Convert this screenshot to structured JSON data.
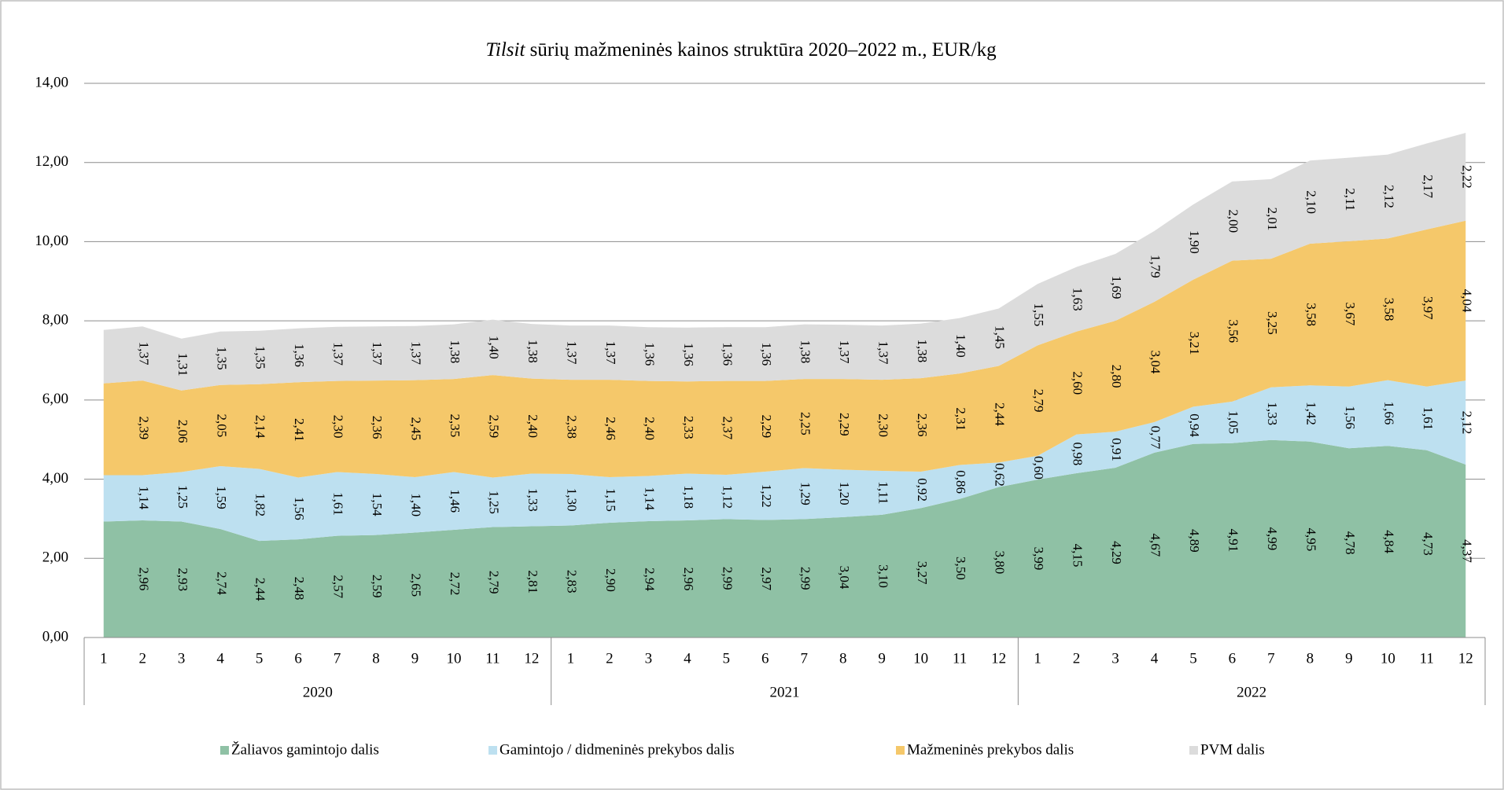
{
  "chart_data": {
    "type": "stacked_area",
    "title_italic": "Tilsit",
    "title": " sūrių mažmeninės kainos struktūra 2020–2022 m., EUR/kg",
    "categories": [
      "1",
      "2",
      "3",
      "4",
      "5",
      "6",
      "7",
      "8",
      "9",
      "10",
      "11",
      "12",
      "1",
      "2",
      "3",
      "4",
      "5",
      "6",
      "7",
      "8",
      "9",
      "10",
      "11",
      "12",
      "1",
      "2",
      "3",
      "4",
      "5",
      "6",
      "7",
      "8",
      "9",
      "10",
      "11",
      "12"
    ],
    "category_groups": [
      "2020",
      "2021",
      "2022"
    ],
    "ylim": [
      0,
      14
    ],
    "yticks": [
      {
        "value": 0,
        "label": "0,00"
      },
      {
        "value": 2,
        "label": "2,00"
      },
      {
        "value": 4,
        "label": "4,00"
      },
      {
        "value": 6,
        "label": "6,00"
      },
      {
        "value": 8,
        "label": "8,00"
      },
      {
        "value": 10,
        "label": "10,00"
      },
      {
        "value": 12,
        "label": "12,00"
      },
      {
        "value": 14,
        "label": "14,00"
      }
    ],
    "grid": true,
    "legend": "bottom",
    "series": [
      {
        "name": "Žaliavos gamintojo dalis",
        "color": "#8fc1a5",
        "values": [
          2.93,
          2.96,
          2.93,
          2.74,
          2.44,
          2.48,
          2.57,
          2.59,
          2.65,
          2.72,
          2.79,
          2.81,
          2.83,
          2.9,
          2.94,
          2.96,
          2.99,
          2.97,
          2.99,
          3.04,
          3.1,
          3.27,
          3.5,
          3.8,
          3.99,
          4.15,
          4.29,
          4.67,
          4.89,
          4.91,
          4.99,
          4.95,
          4.78,
          4.84,
          4.73,
          4.37
        ],
        "value_labels": [
          null,
          "2,96",
          "2,93",
          "2,74",
          "2,44",
          "2,48",
          "2,57",
          "2,59",
          "2,65",
          "2,72",
          "2,79",
          "2,81",
          "2,83",
          "2,90",
          "2,94",
          "2,96",
          "2,99",
          "2,97",
          "2,99",
          "3,04",
          "3,10",
          "3,27",
          "3,50",
          "3,80",
          "3,99",
          "4,15",
          "4,29",
          "4,67",
          "4,89",
          "4,91",
          "4,99",
          "4,95",
          "4,78",
          "4,84",
          "4,73",
          "4,37"
        ]
      },
      {
        "name": "Gamintojo / didmeninės prekybos dalis",
        "color": "#bde0f0",
        "values": [
          1.17,
          1.14,
          1.25,
          1.59,
          1.82,
          1.56,
          1.61,
          1.54,
          1.4,
          1.46,
          1.25,
          1.33,
          1.3,
          1.15,
          1.14,
          1.18,
          1.12,
          1.22,
          1.29,
          1.2,
          1.11,
          0.92,
          0.86,
          0.62,
          0.6,
          0.98,
          0.91,
          0.77,
          0.94,
          1.05,
          1.33,
          1.42,
          1.56,
          1.66,
          1.61,
          2.12
        ],
        "value_labels": [
          null,
          "1,14",
          "1,25",
          "1,59",
          "1,82",
          "1,56",
          "1,61",
          "1,54",
          "1,40",
          "1,46",
          "1,25",
          "1,33",
          "1,30",
          "1,15",
          "1,14",
          "1,18",
          "1,12",
          "1,22",
          "1,29",
          "1,20",
          "1,11",
          "0,92",
          "0,86",
          "0,62",
          "0,60",
          "0,98",
          "0,91",
          "0,77",
          "0,94",
          "1,05",
          "1,33",
          "1,42",
          "1,56",
          "1,66",
          "1,61",
          "2,12"
        ]
      },
      {
        "name": "Mažmeninės prekybos dalis",
        "color": "#f5c86a",
        "values": [
          2.32,
          2.39,
          2.06,
          2.05,
          2.14,
          2.41,
          2.3,
          2.36,
          2.45,
          2.35,
          2.59,
          2.4,
          2.38,
          2.46,
          2.4,
          2.33,
          2.37,
          2.29,
          2.25,
          2.29,
          2.3,
          2.36,
          2.31,
          2.44,
          2.79,
          2.6,
          2.8,
          3.04,
          3.21,
          3.56,
          3.25,
          3.58,
          3.67,
          3.58,
          3.97,
          4.04
        ],
        "value_labels": [
          null,
          "2,39",
          "2,06",
          "2,05",
          "2,14",
          "2,41",
          "2,30",
          "2,36",
          "2,45",
          "2,35",
          "2,59",
          "2,40",
          "2,38",
          "2,46",
          "2,40",
          "2,33",
          "2,37",
          "2,29",
          "2,25",
          "2,29",
          "2,30",
          "2,36",
          "2,31",
          "2,44",
          "2,79",
          "2,60",
          "2,80",
          "3,04",
          "3,21",
          "3,56",
          "3,25",
          "3,58",
          "3,67",
          "3,58",
          "3,97",
          "4,04"
        ]
      },
      {
        "name": "PVM dalis",
        "color": "#dcdcdc",
        "values": [
          1.35,
          1.37,
          1.31,
          1.35,
          1.35,
          1.36,
          1.37,
          1.37,
          1.37,
          1.38,
          1.4,
          1.38,
          1.37,
          1.37,
          1.36,
          1.36,
          1.36,
          1.36,
          1.38,
          1.37,
          1.37,
          1.38,
          1.4,
          1.45,
          1.55,
          1.63,
          1.69,
          1.79,
          1.9,
          2.0,
          2.01,
          2.1,
          2.11,
          2.12,
          2.17,
          2.22
        ],
        "value_labels": [
          null,
          "1,37",
          "1,31",
          "1,35",
          "1,35",
          "1,36",
          "1,37",
          "1,37",
          "1,37",
          "1,38",
          "1,40",
          "1,38",
          "1,37",
          "1,37",
          "1,36",
          "1,36",
          "1,36",
          "1,36",
          "1,38",
          "1,37",
          "1,37",
          "1,38",
          "1,40",
          "1,45",
          "1,55",
          "1,63",
          "1,69",
          "1,79",
          "1,90",
          "2,00",
          "2,01",
          "2,10",
          "2,11",
          "2,12",
          "2,17",
          "2,22"
        ]
      }
    ]
  }
}
